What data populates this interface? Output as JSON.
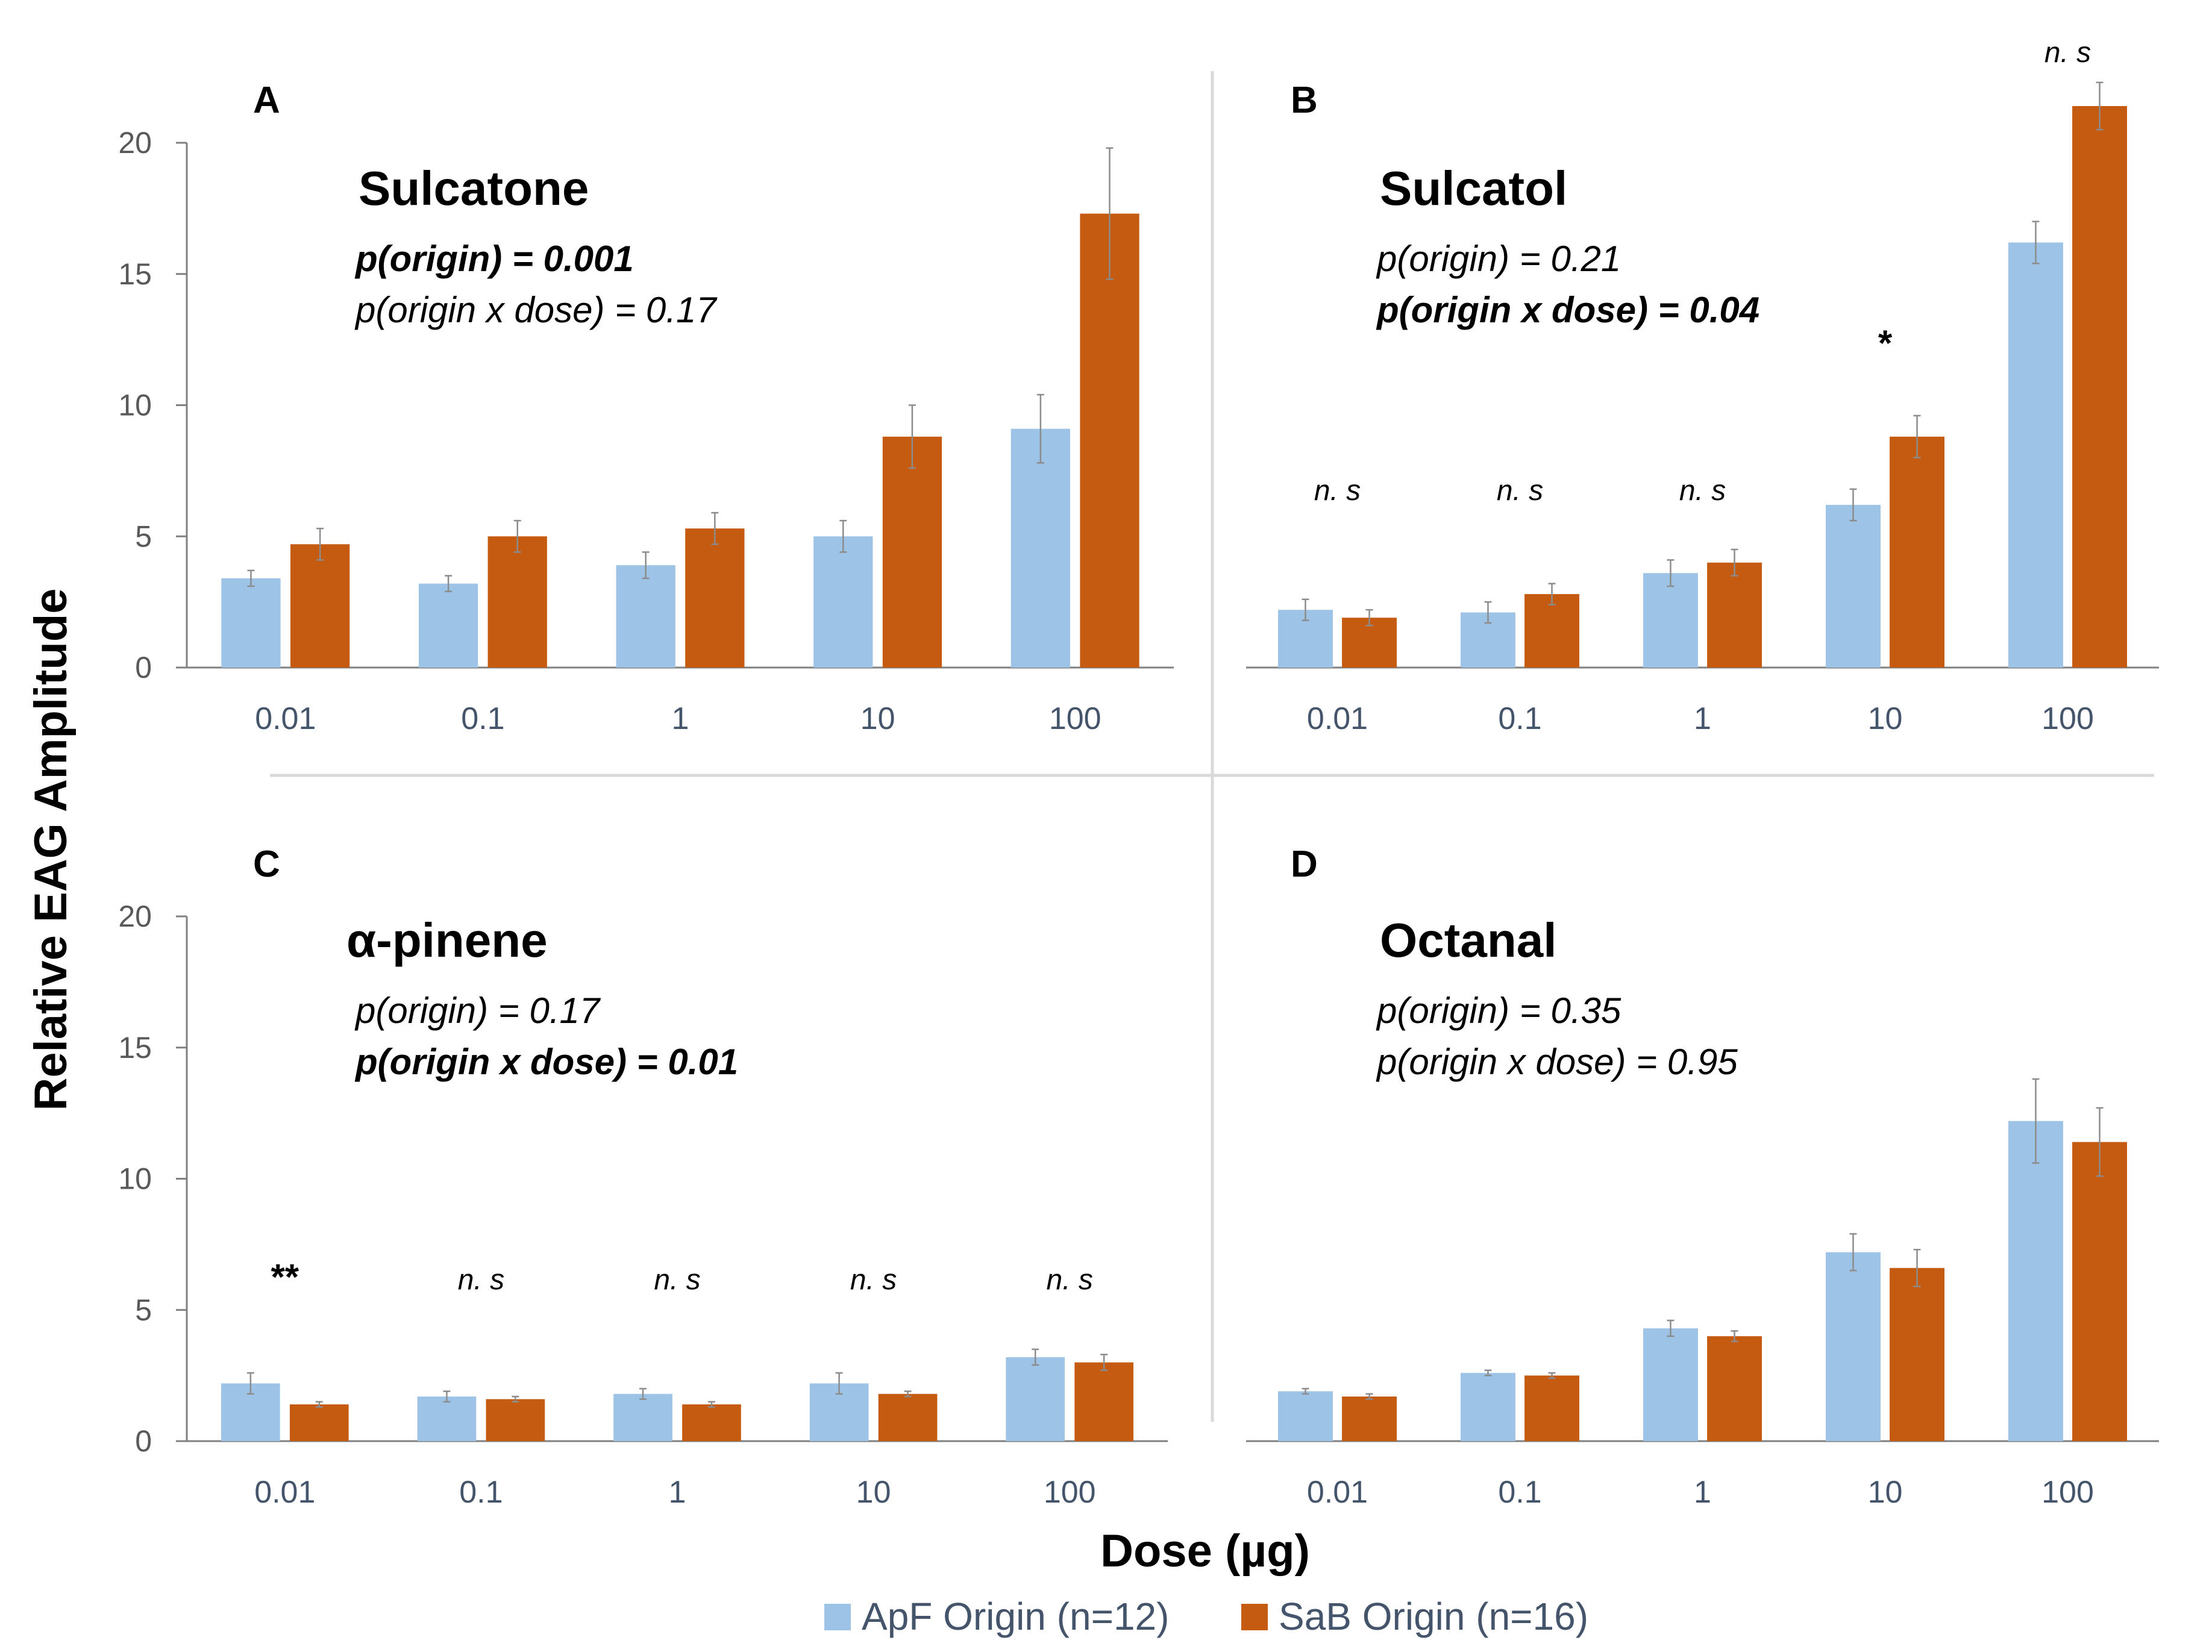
{
  "colors": {
    "apf": "#9dc3e6",
    "sab": "#c55a11",
    "axis": "#808080",
    "divider": "#d9d9d9",
    "error": "#8c8c8c"
  },
  "y_axis_title": "Relative EAG Amplitude",
  "x_axis_title": "Dose (µg)",
  "legend": [
    "ApF Origin (n=12)",
    "SaB Origin (n=16)"
  ],
  "chart_data": [
    {
      "type": "bar",
      "panel": "A",
      "title": "Sulcatone",
      "stats": [
        {
          "text": "p(origin) = 0.001",
          "bold": true
        },
        {
          "text": "p(origin x dose) = 0.17",
          "bold": false
        }
      ],
      "categories": [
        "0.01",
        "0.1",
        "1",
        "10",
        "100"
      ],
      "series": [
        {
          "name": "ApF Origin (n=12)",
          "values": [
            3.4,
            3.2,
            3.9,
            5.0,
            9.1
          ],
          "errors": [
            0.3,
            0.3,
            0.5,
            0.6,
            1.3
          ]
        },
        {
          "name": "SaB Origin (n=16)",
          "values": [
            4.7,
            5.0,
            5.3,
            8.8,
            17.3
          ],
          "errors": [
            0.6,
            0.6,
            0.6,
            1.2,
            2.5
          ]
        }
      ],
      "annotations": [],
      "xlabel": "Dose (µg)",
      "ylabel": "Relative EAG Amplitude",
      "ylim": [
        0,
        20
      ],
      "yticks": [
        0,
        5,
        10,
        15,
        20
      ],
      "show_yticks": true
    },
    {
      "type": "bar",
      "panel": "B",
      "title": "Sulcatol",
      "stats": [
        {
          "text": "p(origin) = 0.21",
          "bold": false
        },
        {
          "text": "p(origin x dose) = 0.04",
          "bold": true
        }
      ],
      "categories": [
        "0.01",
        "0.1",
        "1",
        "10",
        "100"
      ],
      "series": [
        {
          "name": "ApF Origin (n=12)",
          "values": [
            2.2,
            2.1,
            3.6,
            6.2,
            16.2
          ],
          "errors": [
            0.4,
            0.4,
            0.5,
            0.6,
            0.8
          ]
        },
        {
          "name": "SaB Origin (n=16)",
          "values": [
            1.9,
            2.8,
            4.0,
            8.8,
            21.4
          ],
          "errors": [
            0.3,
            0.4,
            0.5,
            0.8,
            0.9
          ]
        }
      ],
      "annotations": [
        "n. s",
        "n. s",
        "n. s",
        "*",
        "n. s"
      ],
      "xlabel": "Dose (µg)",
      "ylabel": "Relative EAG Amplitude",
      "ylim": [
        0,
        20
      ],
      "yticks": [
        0,
        5,
        10,
        15,
        20
      ],
      "show_yticks": false
    },
    {
      "type": "bar",
      "panel": "C",
      "title": "α-pinene",
      "stats": [
        {
          "text": "p(origin) = 0.17",
          "bold": false
        },
        {
          "text": "p(origin x dose) = 0.01",
          "bold": true
        }
      ],
      "categories": [
        "0.01",
        "0.1",
        "1",
        "10",
        "100"
      ],
      "series": [
        {
          "name": "ApF Origin (n=12)",
          "values": [
            2.2,
            1.7,
            1.8,
            2.2,
            3.2
          ],
          "errors": [
            0.4,
            0.2,
            0.2,
            0.4,
            0.3
          ]
        },
        {
          "name": "SaB Origin (n=16)",
          "values": [
            1.4,
            1.6,
            1.4,
            1.8,
            3.0
          ],
          "errors": [
            0.1,
            0.1,
            0.1,
            0.1,
            0.3
          ]
        }
      ],
      "annotations": [
        "**",
        "n. s",
        "n. s",
        "n. s",
        "n. s"
      ],
      "xlabel": "Dose (µg)",
      "ylabel": "Relative EAG Amplitude",
      "ylim": [
        0,
        20
      ],
      "yticks": [
        0,
        5,
        10,
        15,
        20
      ],
      "show_yticks": true
    },
    {
      "type": "bar",
      "panel": "D",
      "title": "Octanal",
      "stats": [
        {
          "text": "p(origin) = 0.35",
          "bold": false
        },
        {
          "text": "p(origin x dose) = 0.95",
          "bold": false
        }
      ],
      "categories": [
        "0.01",
        "0.1",
        "1",
        "10",
        "100"
      ],
      "series": [
        {
          "name": "ApF Origin (n=12)",
          "values": [
            1.9,
            2.6,
            4.3,
            7.2,
            12.2
          ],
          "errors": [
            0.1,
            0.1,
            0.3,
            0.7,
            1.6
          ]
        },
        {
          "name": "SaB Origin (n=16)",
          "values": [
            1.7,
            2.5,
            4.0,
            6.6,
            11.4
          ],
          "errors": [
            0.1,
            0.1,
            0.2,
            0.7,
            1.3
          ]
        }
      ],
      "annotations": [],
      "xlabel": "Dose (µg)",
      "ylabel": "Relative EAG Amplitude",
      "ylim": [
        0,
        20
      ],
      "yticks": [
        0,
        5,
        10,
        15,
        20
      ],
      "show_yticks": false
    }
  ]
}
